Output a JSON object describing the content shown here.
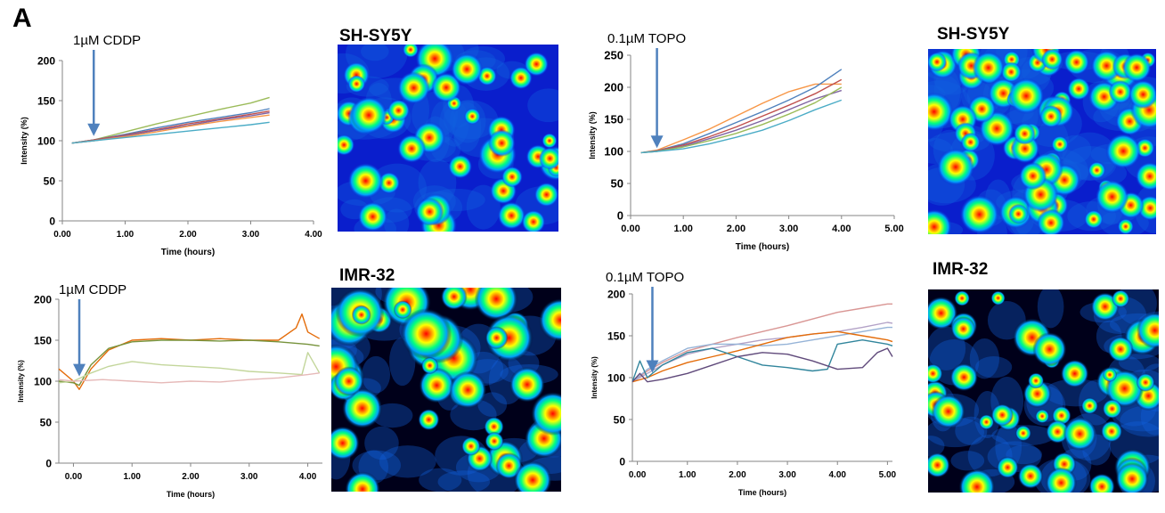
{
  "panel_letter": "A",
  "images": [
    {
      "label": "SH-SY5Y"
    },
    {
      "label": "SH-SY5Y"
    },
    {
      "label": "IMR-32"
    },
    {
      "label": "IMR-32"
    }
  ],
  "chart_data": [
    {
      "type": "line",
      "annotation": "1µM CDDP",
      "arrow_x": 0.5,
      "xlabel": "Time (hours)",
      "ylabel": "Intensity (%)",
      "xlim": [
        0,
        4
      ],
      "ylim": [
        0,
        200
      ],
      "xticks": [
        "0.00",
        "1.00",
        "2.00",
        "3.00",
        "4.00"
      ],
      "yticks": [
        "0",
        "50",
        "100",
        "150",
        "200"
      ],
      "series": [
        {
          "color": "#9bbb59",
          "x": [
            0.15,
            0.5,
            1.0,
            1.5,
            2.0,
            2.5,
            3.0,
            3.3
          ],
          "values": [
            97,
            101,
            111,
            121,
            130,
            139,
            147,
            154
          ]
        },
        {
          "color": "#4f81bd",
          "x": [
            0.15,
            0.5,
            1.0,
            1.5,
            2.0,
            2.5,
            3.0,
            3.3
          ],
          "values": [
            97,
            101,
            108,
            116,
            123,
            129,
            135,
            140
          ]
        },
        {
          "color": "#c0504d",
          "x": [
            0.15,
            0.5,
            1.0,
            1.5,
            2.0,
            2.5,
            3.0,
            3.3
          ],
          "values": [
            97,
            101,
            107,
            114,
            121,
            127,
            133,
            137
          ]
        },
        {
          "color": "#8064a2",
          "x": [
            0.15,
            0.5,
            1.0,
            1.5,
            2.0,
            2.5,
            3.0,
            3.3
          ],
          "values": [
            97,
            100,
            106,
            113,
            119,
            126,
            131,
            135
          ]
        },
        {
          "color": "#f79646",
          "x": [
            0.15,
            0.5,
            1.0,
            1.5,
            2.0,
            2.5,
            3.0,
            3.3
          ],
          "values": [
            97,
            100,
            105,
            111,
            118,
            124,
            129,
            132
          ]
        },
        {
          "color": "#4bacc6",
          "x": [
            0.15,
            0.5,
            1.0,
            1.5,
            2.0,
            2.5,
            3.0,
            3.3
          ],
          "values": [
            97,
            100,
            104,
            108,
            112,
            116,
            120,
            123
          ]
        }
      ]
    },
    {
      "type": "line",
      "annotation": "0.1µM TOPO",
      "arrow_x": 0.5,
      "xlabel": "Time (hours)",
      "ylabel": "Intensity (%)",
      "xlim": [
        0,
        5
      ],
      "ylim": [
        0,
        250
      ],
      "xticks": [
        "0.00",
        "1.00",
        "2.00",
        "3.00",
        "4.00",
        "5.00"
      ],
      "yticks": [
        "0",
        "50",
        "100",
        "150",
        "200",
        "250"
      ],
      "series": [
        {
          "color": "#f79646",
          "x": [
            0.2,
            0.5,
            1.0,
            1.5,
            2.0,
            2.5,
            3.0,
            3.5,
            4.0
          ],
          "values": [
            98,
            102,
            118,
            135,
            155,
            175,
            193,
            205,
            205
          ]
        },
        {
          "color": "#4f81bd",
          "x": [
            0.2,
            0.5,
            1.0,
            1.5,
            2.0,
            2.5,
            3.0,
            3.5,
            4.0
          ],
          "values": [
            98,
            101,
            112,
            128,
            145,
            162,
            180,
            200,
            228
          ]
        },
        {
          "color": "#c0504d",
          "x": [
            0.2,
            0.5,
            1.0,
            1.5,
            2.0,
            2.5,
            3.0,
            3.5,
            4.0
          ],
          "values": [
            98,
            101,
            110,
            123,
            138,
            155,
            172,
            190,
            212
          ]
        },
        {
          "color": "#8064a2",
          "x": [
            0.2,
            0.5,
            1.0,
            1.5,
            2.0,
            2.5,
            3.0,
            3.5,
            4.0
          ],
          "values": [
            98,
            100,
            108,
            120,
            133,
            148,
            165,
            182,
            195
          ]
        },
        {
          "color": "#9bbb59",
          "x": [
            0.2,
            0.5,
            1.0,
            1.5,
            2.0,
            2.5,
            3.0,
            3.5,
            4.0
          ],
          "values": [
            98,
            100,
            107,
            117,
            128,
            142,
            158,
            176,
            200
          ]
        },
        {
          "color": "#4bacc6",
          "x": [
            0.2,
            0.5,
            1.0,
            1.5,
            2.0,
            2.5,
            3.0,
            3.5,
            4.0
          ],
          "values": [
            98,
            100,
            104,
            112,
            122,
            133,
            148,
            165,
            180
          ]
        }
      ]
    },
    {
      "type": "line",
      "annotation": "1µM CDDP",
      "arrow_x": 0.1,
      "xlabel": "Time (hours)",
      "ylabel": "Intensity (%)",
      "xlim": [
        -0.25,
        4.25
      ],
      "ylim": [
        0,
        200
      ],
      "xticks": [
        "0.00",
        "1.00",
        "2.00",
        "3.00",
        "4.00"
      ],
      "yticks": [
        "0",
        "50",
        "100",
        "150",
        "200"
      ],
      "series": [
        {
          "color": "#e46c0a",
          "x": [
            -0.25,
            0.0,
            0.1,
            0.3,
            0.6,
            1.0,
            1.5,
            2.0,
            2.5,
            3.0,
            3.5,
            3.8,
            3.9,
            4.0,
            4.2
          ],
          "values": [
            115,
            100,
            90,
            115,
            138,
            150,
            152,
            150,
            152,
            150,
            150,
            165,
            182,
            160,
            152
          ]
        },
        {
          "color": "#77933c",
          "x": [
            -0.25,
            0.0,
            0.1,
            0.3,
            0.6,
            1.0,
            1.5,
            2.0,
            2.5,
            3.0,
            3.5,
            4.0,
            4.2
          ],
          "values": [
            100,
            98,
            95,
            120,
            140,
            148,
            150,
            150,
            149,
            150,
            148,
            145,
            143
          ]
        },
        {
          "color": "#c3d69b",
          "x": [
            -0.25,
            0.0,
            0.3,
            0.6,
            1.0,
            1.5,
            2.0,
            2.5,
            3.0,
            3.5,
            3.9,
            4.0,
            4.2
          ],
          "values": [
            98,
            100,
            110,
            118,
            124,
            120,
            118,
            116,
            112,
            110,
            108,
            135,
            110
          ]
        },
        {
          "color": "#e6b9b8",
          "x": [
            -0.25,
            0.0,
            0.5,
            1.0,
            1.5,
            2.0,
            2.5,
            3.0,
            3.5,
            4.0,
            4.2
          ],
          "values": [
            102,
            100,
            102,
            100,
            98,
            100,
            99,
            102,
            104,
            108,
            110
          ]
        }
      ]
    },
    {
      "type": "line",
      "annotation": "0.1µM TOPO",
      "arrow_x": 0.3,
      "xlabel": "Time (hours)",
      "ylabel": "Intensity (%)",
      "xlim": [
        -0.1,
        5.1
      ],
      "ylim": [
        0,
        200
      ],
      "xticks": [
        "0.00",
        "1.00",
        "2.00",
        "3.00",
        "4.00",
        "5.00"
      ],
      "yticks": [
        "0",
        "50",
        "100",
        "150",
        "200"
      ],
      "series": [
        {
          "color": "#d99694",
          "x": [
            -0.1,
            0.2,
            0.5,
            1.0,
            1.5,
            2.0,
            2.5,
            3.0,
            3.5,
            4.0,
            4.5,
            5.0,
            5.1
          ],
          "values": [
            95,
            108,
            118,
            132,
            140,
            148,
            155,
            162,
            170,
            178,
            183,
            188,
            188
          ]
        },
        {
          "color": "#b3a2c7",
          "x": [
            -0.1,
            0.2,
            0.5,
            1.0,
            1.5,
            2.0,
            2.5,
            3.0,
            3.5,
            4.0,
            4.5,
            5.0,
            5.1
          ],
          "values": [
            95,
            105,
            115,
            128,
            135,
            140,
            145,
            148,
            152,
            155,
            160,
            166,
            165
          ]
        },
        {
          "color": "#95b3d7",
          "x": [
            -0.1,
            0.2,
            0.5,
            1.0,
            1.5,
            2.0,
            2.5,
            3.0,
            3.5,
            4.0,
            4.5,
            5.0,
            5.1
          ],
          "values": [
            95,
            110,
            120,
            135,
            140,
            140,
            138,
            140,
            145,
            150,
            155,
            160,
            160
          ]
        },
        {
          "color": "#e46c0a",
          "x": [
            -0.1,
            0.2,
            0.5,
            1.0,
            1.5,
            2.0,
            2.5,
            3.0,
            3.5,
            4.0,
            4.5,
            5.0,
            5.1
          ],
          "values": [
            95,
            100,
            108,
            118,
            125,
            132,
            140,
            148,
            152,
            155,
            150,
            145,
            143
          ]
        },
        {
          "color": "#31859c",
          "x": [
            -0.1,
            0.05,
            0.2,
            0.5,
            1.0,
            1.5,
            2.0,
            2.5,
            3.0,
            3.5,
            3.8,
            4.0,
            4.5,
            5.0,
            5.1
          ],
          "values": [
            95,
            120,
            100,
            115,
            130,
            135,
            125,
            115,
            112,
            108,
            110,
            140,
            145,
            140,
            138
          ]
        },
        {
          "color": "#604a7b",
          "x": [
            -0.1,
            0.05,
            0.2,
            0.5,
            1.0,
            1.5,
            2.0,
            2.5,
            3.0,
            3.5,
            4.0,
            4.5,
            4.8,
            5.0,
            5.1
          ],
          "values": [
            95,
            105,
            95,
            98,
            105,
            115,
            125,
            130,
            128,
            120,
            110,
            112,
            130,
            135,
            125
          ]
        }
      ]
    }
  ]
}
